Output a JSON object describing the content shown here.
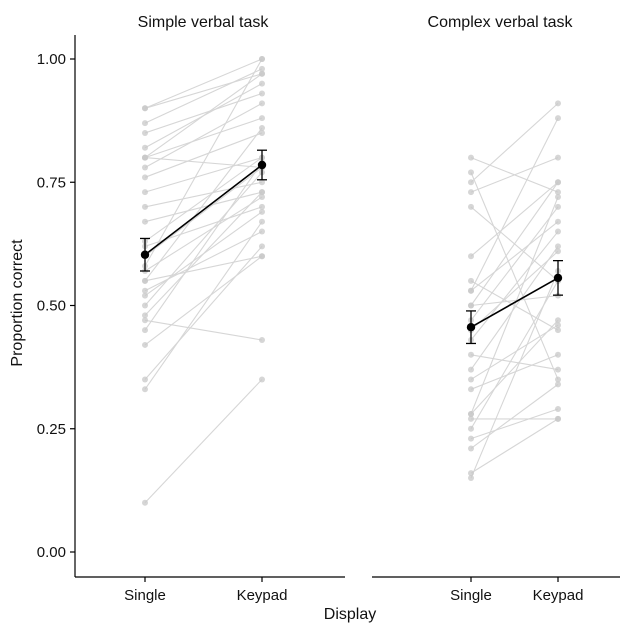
{
  "chart_data": {
    "type": "line",
    "xlabel": "Display",
    "ylabel": "Proportion correct",
    "ylim": [
      0,
      1.05
    ],
    "y_ticks": [
      "0.00",
      "0.25",
      "0.50",
      "0.75",
      "1.00"
    ],
    "categories": [
      "Single",
      "Keypad"
    ],
    "grid": false,
    "panels": [
      {
        "title": "Simple verbal task",
        "mean": [
          0.603,
          0.785
        ],
        "error": [
          0.033,
          0.03
        ],
        "subjects": [
          [
            0.9,
            1.0
          ],
          [
            0.9,
            0.97
          ],
          [
            0.87,
            0.98
          ],
          [
            0.85,
            0.93
          ],
          [
            0.82,
            0.95
          ],
          [
            0.8,
            0.88
          ],
          [
            0.8,
            0.78
          ],
          [
            0.8,
            0.97
          ],
          [
            0.78,
            0.91
          ],
          [
            0.76,
            0.85
          ],
          [
            0.73,
            0.8
          ],
          [
            0.7,
            0.75
          ],
          [
            0.67,
            0.73
          ],
          [
            0.63,
            0.8
          ],
          [
            0.62,
            0.7
          ],
          [
            0.6,
            0.78
          ],
          [
            0.58,
            1.0
          ],
          [
            0.57,
            0.72
          ],
          [
            0.55,
            0.6
          ],
          [
            0.55,
            0.86
          ],
          [
            0.53,
            0.65
          ],
          [
            0.52,
            0.69
          ],
          [
            0.5,
            0.77
          ],
          [
            0.48,
            0.73
          ],
          [
            0.47,
            0.43
          ],
          [
            0.45,
            0.79
          ],
          [
            0.42,
            0.6
          ],
          [
            0.35,
            0.62
          ],
          [
            0.33,
            0.67
          ],
          [
            0.1,
            0.35
          ]
        ]
      },
      {
        "title": "Complex verbal task",
        "mean": [
          0.456,
          0.556
        ],
        "error": [
          0.033,
          0.035
        ],
        "subjects": [
          [
            0.8,
            0.73
          ],
          [
            0.77,
            0.35
          ],
          [
            0.75,
            0.91
          ],
          [
            0.73,
            0.8
          ],
          [
            0.7,
            0.55
          ],
          [
            0.6,
            0.75
          ],
          [
            0.55,
            0.45
          ],
          [
            0.53,
            0.67
          ],
          [
            0.53,
            0.88
          ],
          [
            0.5,
            0.52
          ],
          [
            0.5,
            0.75
          ],
          [
            0.47,
            0.7
          ],
          [
            0.45,
            0.61
          ],
          [
            0.43,
            0.65
          ],
          [
            0.4,
            0.37
          ],
          [
            0.37,
            0.62
          ],
          [
            0.35,
            0.46
          ],
          [
            0.33,
            0.4
          ],
          [
            0.28,
            0.47
          ],
          [
            0.28,
            0.72
          ],
          [
            0.27,
            0.27
          ],
          [
            0.25,
            0.55
          ],
          [
            0.23,
            0.29
          ],
          [
            0.21,
            0.34
          ],
          [
            0.16,
            0.27
          ],
          [
            0.15,
            0.57
          ]
        ]
      }
    ]
  }
}
